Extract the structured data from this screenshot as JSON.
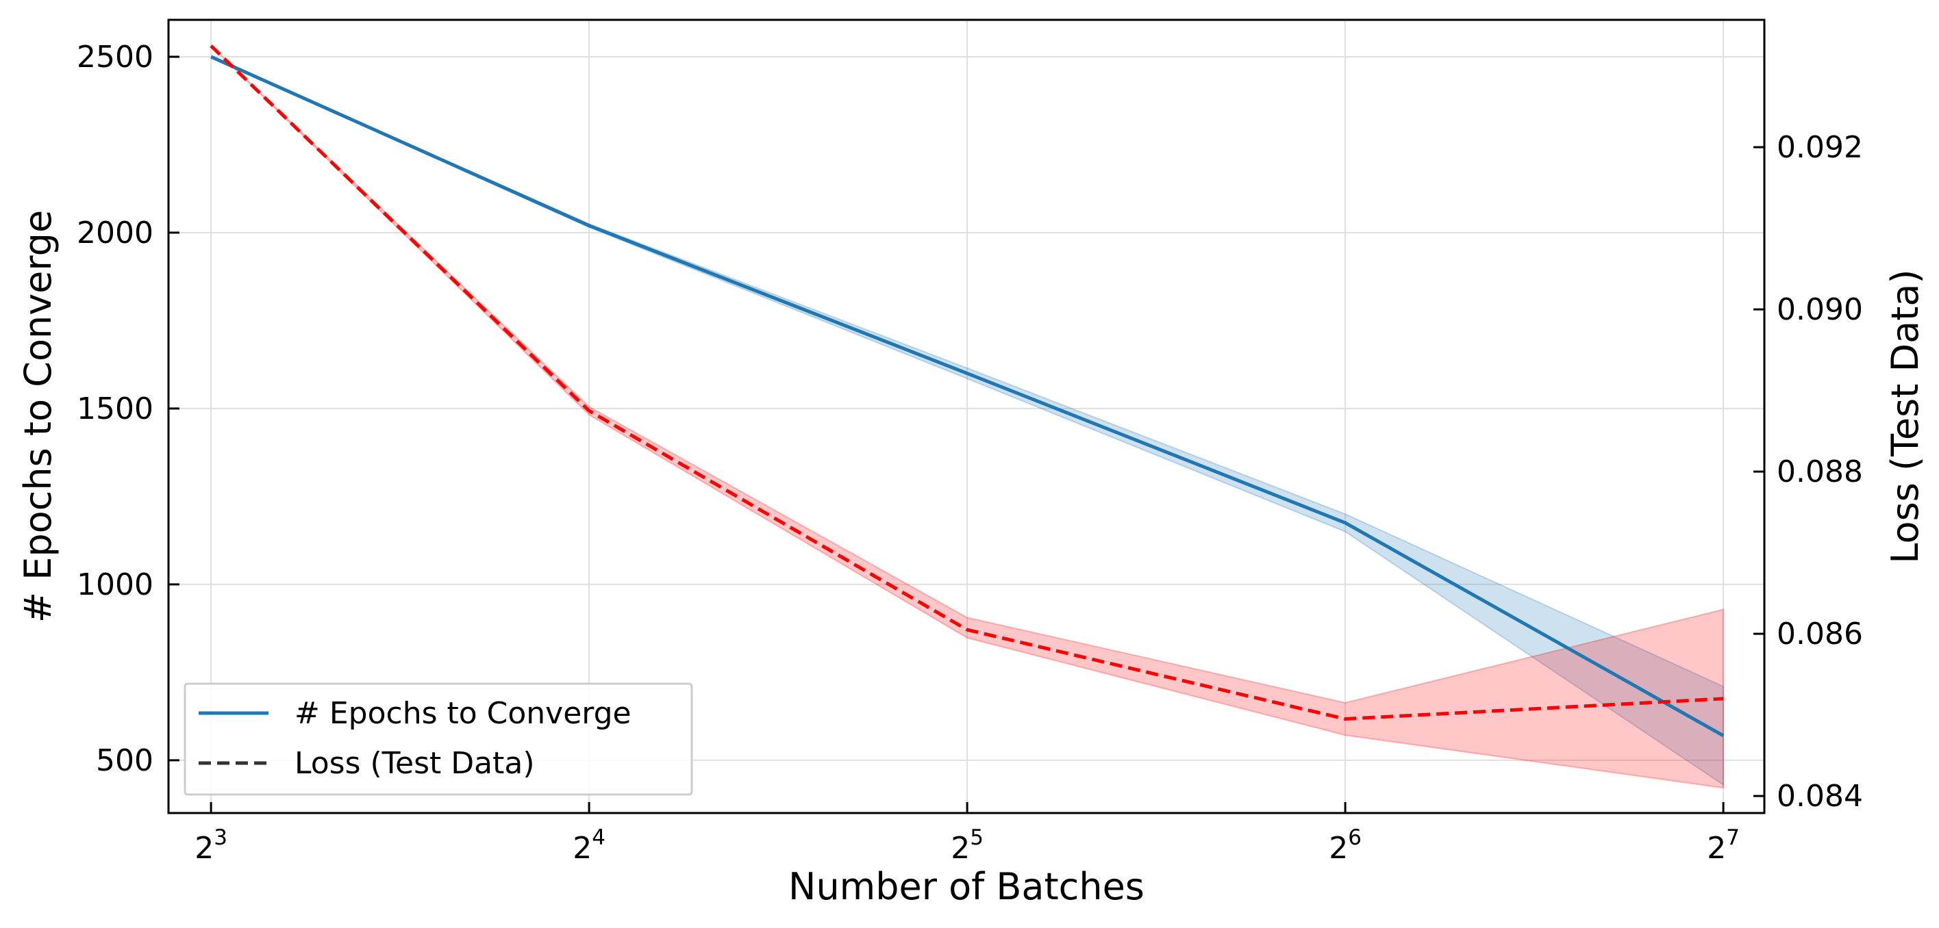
{
  "chart_data": {
    "type": "line",
    "title": "",
    "xlabel": "Number of Batches",
    "ylabel_left": "# Epochs to Converge",
    "ylabel_right": "Loss (Test Data)",
    "x_scale": "log2",
    "x": [
      8,
      16,
      32,
      64,
      128
    ],
    "x_ticks": [
      {
        "value": 8,
        "base": "2",
        "exp": "3"
      },
      {
        "value": 16,
        "base": "2",
        "exp": "4"
      },
      {
        "value": 32,
        "base": "2",
        "exp": "5"
      },
      {
        "value": 64,
        "base": "2",
        "exp": "6"
      },
      {
        "value": 128,
        "base": "2",
        "exp": "7"
      }
    ],
    "xlim": [
      7.4,
      138
    ],
    "ylim_left": [
      350,
      2605
    ],
    "yticks_left": [
      "500",
      "1000",
      "1500",
      "2000",
      "2500"
    ],
    "ylim_right": [
      0.08379,
      0.09357
    ],
    "yticks_right": [
      "0.084",
      "0.086",
      "0.088",
      "0.090",
      "0.092"
    ],
    "grid": true,
    "legend_position": "lower-left",
    "series": [
      {
        "name": "# Epochs to Converge",
        "axis": "left",
        "color": "#1f77b4",
        "line_style": "solid",
        "values": [
          2500,
          2020,
          1600,
          1175,
          570
        ],
        "band_low": [
          2500,
          2015,
          1585,
          1150,
          430
        ],
        "band_high": [
          2500,
          2025,
          1615,
          1200,
          710
        ]
      },
      {
        "name": "Loss (Test Data)",
        "axis": "right",
        "color": "#ff0000",
        "line_style": "dashed",
        "values": [
          0.09325,
          0.08875,
          0.08605,
          0.08495,
          0.0852
        ],
        "band_low": [
          0.09325,
          0.0887,
          0.08595,
          0.08475,
          0.0841
        ],
        "band_high": [
          0.09325,
          0.0888,
          0.0862,
          0.08515,
          0.0863
        ]
      }
    ],
    "legend": [
      {
        "label": "# Epochs to Converge",
        "line_style": "solid",
        "color": "#1f77b4"
      },
      {
        "label": "Loss (Test Data)",
        "line_style": "dashed",
        "color": "#333333"
      }
    ]
  }
}
